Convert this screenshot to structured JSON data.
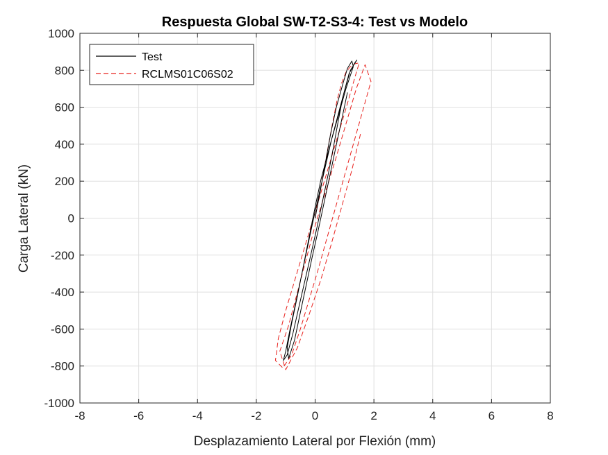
{
  "chart_data": {
    "type": "line",
    "title": "Respuesta Global SW-T2-S3-4: Test vs Modelo",
    "xlabel": "Desplazamiento Lateral por Flexión (mm)",
    "ylabel": "Carga Lateral (kN)",
    "xlim": [
      -8,
      8
    ],
    "ylim": [
      -1000,
      1000
    ],
    "xticks": [
      "-8",
      "-6",
      "-4",
      "-2",
      "0",
      "2",
      "4",
      "6",
      "8"
    ],
    "yticks": [
      "-1000",
      "-800",
      "-600",
      "-400",
      "-200",
      "0",
      "200",
      "400",
      "600",
      "800",
      "1000"
    ],
    "grid": true,
    "legend_position": "top-left",
    "series": [
      {
        "name": "Test",
        "color": "#000000",
        "style": "solid",
        "x": [
          0,
          0.18,
          0.35,
          0.52,
          0.72,
          0.95,
          1.1,
          1.25,
          1.3,
          1.05,
          0.8,
          0.55,
          0.35,
          0.15,
          -0.05,
          -0.25,
          -0.45,
          -0.65,
          -0.85,
          -1.0,
          -1.08,
          -0.95,
          -0.75,
          -0.55,
          -0.35,
          -0.15,
          0.05,
          0.25,
          0.45,
          0.62,
          0.78,
          0.95,
          1.15,
          1.35,
          1.42,
          1.2,
          0.95,
          0.7,
          0.45,
          0.2,
          0,
          -0.2,
          -0.4,
          -0.6,
          -0.8,
          -0.95,
          -0.9,
          -0.7,
          -0.5,
          -0.3,
          -0.1,
          0.1,
          0.3,
          0.5,
          0.7,
          0.9,
          1.1
        ],
        "y": [
          0,
          150,
          300,
          450,
          600,
          730,
          810,
          850,
          820,
          700,
          560,
          420,
          280,
          140,
          0,
          -150,
          -300,
          -450,
          -600,
          -720,
          -770,
          -740,
          -620,
          -480,
          -340,
          -200,
          -60,
          90,
          240,
          380,
          520,
          660,
          780,
          840,
          855,
          800,
          660,
          510,
          360,
          210,
          60,
          -100,
          -260,
          -420,
          -570,
          -700,
          -760,
          -660,
          -510,
          -360,
          -210,
          -70,
          80,
          230,
          380,
          530,
          680
        ]
      },
      {
        "name": "RCLMS01C06S02",
        "color": "#e8201c",
        "style": "dashed",
        "x": [
          0,
          0.15,
          0.3,
          0.45,
          0.6,
          0.75,
          0.9,
          1.05,
          1.2,
          1.35,
          1.5,
          1.35,
          1.1,
          0.8,
          0.5,
          0.2,
          -0.1,
          -0.4,
          -0.7,
          -1.0,
          -1.25,
          -1.35,
          -1.1,
          -0.8,
          -0.5,
          -0.2,
          0.1,
          0.4,
          0.7,
          1.0,
          1.3,
          1.6,
          1.9,
          1.7,
          1.4,
          1.05,
          0.7,
          0.35,
          0,
          -0.3,
          -0.6,
          -0.9,
          -1.2,
          -1.0,
          -0.6,
          -0.2,
          0.2,
          0.55,
          0.9,
          1.25,
          1.55
        ],
        "y": [
          0,
          130,
          260,
          390,
          520,
          640,
          730,
          790,
          820,
          835,
          840,
          760,
          620,
          460,
          300,
          140,
          -20,
          -180,
          -340,
          -500,
          -650,
          -770,
          -810,
          -740,
          -600,
          -440,
          -280,
          -110,
          60,
          230,
          400,
          570,
          740,
          830,
          700,
          510,
          320,
          140,
          -40,
          -220,
          -400,
          -580,
          -720,
          -820,
          -700,
          -520,
          -330,
          -140,
          60,
          260,
          460
        ]
      }
    ]
  }
}
